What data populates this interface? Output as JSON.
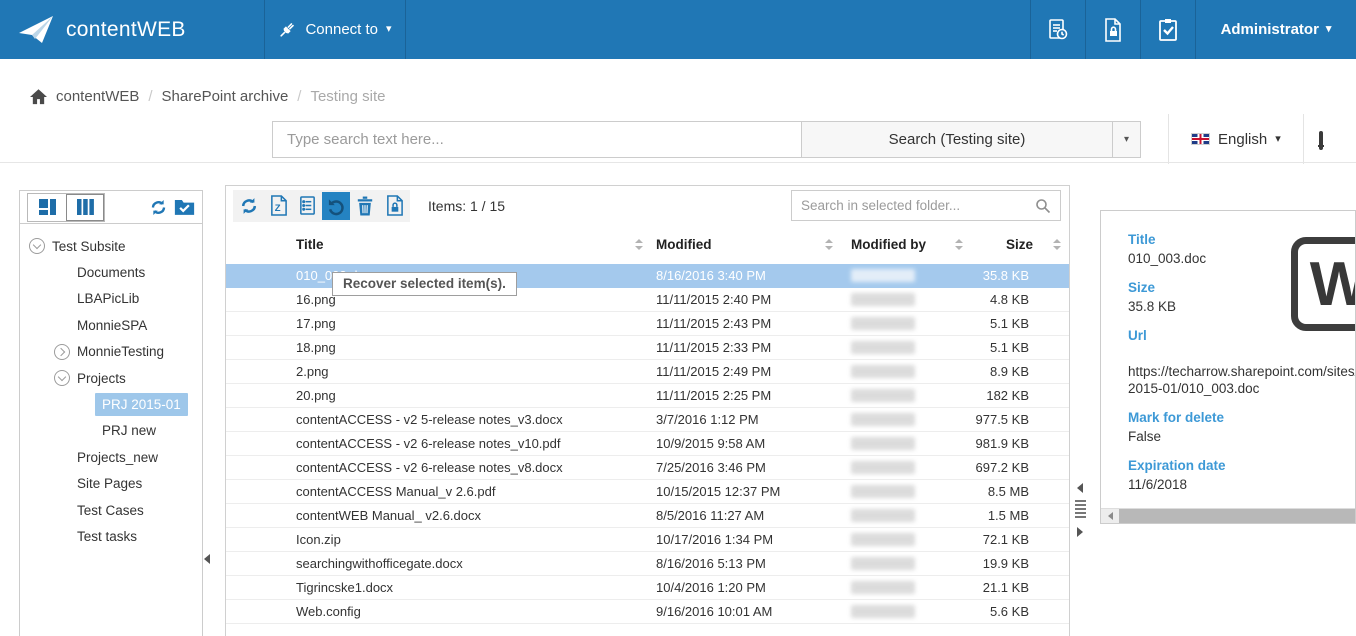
{
  "colors": {
    "accent": "#2077b5",
    "row_selection": "#a4c9ed",
    "detail_label_blue": "#3d99d6",
    "tree_selection": "#9ec7ea"
  },
  "topbar": {
    "brand": "contentWEB",
    "connect_label": "Connect to",
    "user_label": "Administrator",
    "icons": [
      "paper-plane-logo-icon",
      "plug-icon",
      "archive-report-icon",
      "document-lock-icon",
      "tasks-clipboard-icon"
    ]
  },
  "breadcrumb": {
    "items": [
      "contentWEB",
      "SharePoint archive",
      "Testing site"
    ]
  },
  "search_band": {
    "placeholder": "Type search text here...",
    "search_button": "Search (Testing site)",
    "language": "English",
    "icons": [
      "uk-flag-icon",
      "mobile-device-icon"
    ]
  },
  "sidebar": {
    "view_toggle_icons": [
      "layout-blocks-icon",
      "layout-columns-icon"
    ],
    "action_icons": [
      "refresh-icon",
      "folder-check-icon"
    ],
    "tree": [
      {
        "label": "Test Subsite",
        "level": 0,
        "expander": "expanded",
        "selected": false
      },
      {
        "label": "Documents",
        "level": 1,
        "expander": "none",
        "selected": false
      },
      {
        "label": "LBAPicLib",
        "level": 1,
        "expander": "none",
        "selected": false
      },
      {
        "label": "MonnieSPA",
        "level": 1,
        "expander": "none",
        "selected": false
      },
      {
        "label": "MonnieTesting",
        "level": 1,
        "expander": "collapsed",
        "selected": false
      },
      {
        "label": "Projects",
        "level": 1,
        "expander": "expanded",
        "selected": false
      },
      {
        "label": "PRJ 2015-01",
        "level": 2,
        "expander": "none",
        "selected": true
      },
      {
        "label": "PRJ new",
        "level": 2,
        "expander": "none",
        "selected": false
      },
      {
        "label": "Projects_new",
        "level": 1,
        "expander": "none",
        "selected": false
      },
      {
        "label": "Site Pages",
        "level": 1,
        "expander": "none",
        "selected": false
      },
      {
        "label": "Test Cases",
        "level": 1,
        "expander": "none",
        "selected": false
      },
      {
        "label": "Test tasks",
        "level": 1,
        "expander": "none",
        "selected": false
      }
    ]
  },
  "main": {
    "toolbar": {
      "tools": [
        "refresh-icon",
        "export-zip-icon",
        "legal-hold-document-icon",
        "recover-icon",
        "delete-trash-icon",
        "lock-document-icon"
      ],
      "active_tool": "recover-icon",
      "items_label": "Items: 1 / 15",
      "folder_search_placeholder": "Search in selected folder...",
      "recover_tooltip": "Recover selected item(s)."
    },
    "table": {
      "columns": [
        "Title",
        "Modified",
        "Modified by",
        "Size"
      ],
      "modified_by_redacted": true,
      "rows": [
        {
          "title": "010_003.doc",
          "modified": "8/16/2016 3:40 PM",
          "size": "35.8 KB",
          "selected": true
        },
        {
          "title": "16.png",
          "modified": "11/11/2015 2:40 PM",
          "size": "4.8 KB",
          "selected": false
        },
        {
          "title": "17.png",
          "modified": "11/11/2015 2:43 PM",
          "size": "5.1 KB",
          "selected": false
        },
        {
          "title": "18.png",
          "modified": "11/11/2015 2:33 PM",
          "size": "5.1 KB",
          "selected": false
        },
        {
          "title": "2.png",
          "modified": "11/11/2015 2:49 PM",
          "size": "8.9 KB",
          "selected": false
        },
        {
          "title": "20.png",
          "modified": "11/11/2015 2:25 PM",
          "size": "182 KB",
          "selected": false
        },
        {
          "title": "contentACCESS - v2 5-release notes_v3.docx",
          "modified": "3/7/2016 1:12 PM",
          "size": "977.5 KB",
          "selected": false
        },
        {
          "title": "contentACCESS - v2 6-release notes_v10.pdf",
          "modified": "10/9/2015 9:58 AM",
          "size": "981.9 KB",
          "selected": false
        },
        {
          "title": "contentACCESS - v2 6-release notes_v8.docx",
          "modified": "7/25/2016 3:46 PM",
          "size": "697.2 KB",
          "selected": false
        },
        {
          "title": "contentACCESS Manual_v 2.6.pdf",
          "modified": "10/15/2015 12:37 PM",
          "size": "8.5 MB",
          "selected": false
        },
        {
          "title": "contentWEB Manual_ v2.6.docx",
          "modified": "8/5/2016 11:27 AM",
          "size": "1.5 MB",
          "selected": false
        },
        {
          "title": "Icon.zip",
          "modified": "10/17/2016 1:34 PM",
          "size": "72.1 KB",
          "selected": false
        },
        {
          "title": "searchingwithofficegate.docx",
          "modified": "8/16/2016 5:13 PM",
          "size": "19.9 KB",
          "selected": false
        },
        {
          "title": "Tigrincske1.docx",
          "modified": "10/4/2016 1:20 PM",
          "size": "21.1 KB",
          "selected": false
        },
        {
          "title": "Web.config",
          "modified": "9/16/2016 10:01 AM",
          "size": "5.6 KB",
          "selected": false
        }
      ]
    }
  },
  "details": {
    "preview_icon_letter": "W",
    "fields": [
      {
        "label": "Title",
        "lines": [
          "010_003.doc"
        ]
      },
      {
        "label": "Size",
        "lines": [
          "35.8 KB"
        ]
      },
      {
        "label": "Url",
        "lines": [
          "https://techarrow.sharepoint.com/sites/",
          "2015-01/010_003.doc"
        ],
        "url": true
      },
      {
        "label": "Mark for delete",
        "lines": [
          "False"
        ]
      },
      {
        "label": "Expiration date",
        "lines": [
          "11/6/2018"
        ]
      }
    ]
  }
}
